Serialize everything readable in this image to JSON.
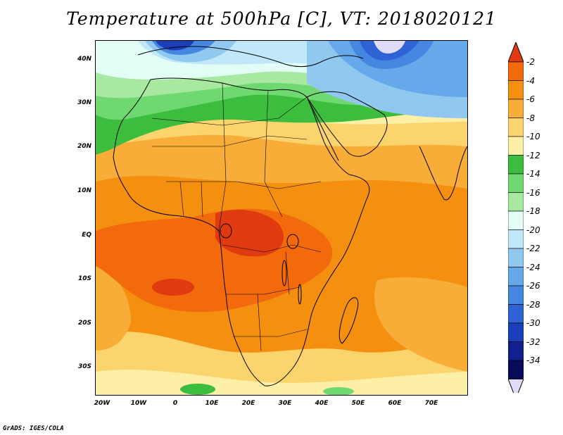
{
  "title": "Temperature at 500hPa [C], VT: 2018020121",
  "footer": "GrADS: IGES/COLA",
  "map": {
    "lat_labels": [
      "40N",
      "30N",
      "20N",
      "10N",
      "EQ",
      "10S",
      "20S",
      "30S"
    ],
    "lon_labels": [
      "20W",
      "10W",
      "0",
      "10E",
      "20E",
      "30E",
      "40E",
      "50E",
      "60E",
      "70E"
    ]
  },
  "colorbar": {
    "labels": [
      "-2",
      "-4",
      "-6",
      "-8",
      "-10",
      "-12",
      "-14",
      "-16",
      "-18",
      "-20",
      "-22",
      "-24",
      "-26",
      "-28",
      "-30",
      "-32",
      "-34"
    ],
    "colors": [
      "#e03a10",
      "#f26a0c",
      "#f58f10",
      "#f7ad37",
      "#fbd46e",
      "#fdf0a6",
      "#3dbd3d",
      "#70d870",
      "#a8e8a0",
      "#e2fcf6",
      "#c0e8f8",
      "#90c8f0",
      "#66a9ea",
      "#4586e0",
      "#2f62d4",
      "#1a3fb8",
      "#10208e",
      "#0a0a5a",
      "#e0dcf8"
    ]
  }
}
